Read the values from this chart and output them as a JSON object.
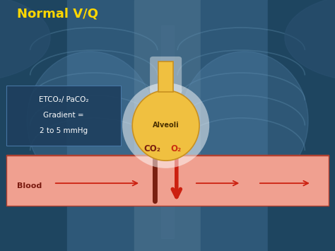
{
  "title": "Normal V/Q",
  "title_color": "#FFD700",
  "title_fontsize": 13,
  "bg_color": "#4a7a96",
  "box_bg_color": "#1e3f5e",
  "box_text_line1": "ETCO₂/ PaCO₂",
  "box_text_line2": "Gradient =",
  "box_text_line3": "2 to 5 mmHg",
  "blood_bar_color": "#f0a090",
  "blood_bar_edge_color": "#b04030",
  "blood_label": "Blood",
  "blood_label_color": "#7a1a10",
  "alveoli_body_color": "#f0c040",
  "alveoli_neck_color": "#c89020",
  "alveoli_label": "Alveoli",
  "alveoli_label_color": "#4a3000",
  "co2_label": "CO₂",
  "o2_label": "O₂",
  "co2_label_color": "#7a2010",
  "o2_label_color": "#cc3010",
  "arrow_up_color": "#7a2010",
  "arrow_down_color": "#cc2010",
  "arrow_h_color": "#cc2010",
  "chest_bg_colors": [
    "#2a5570",
    "#3a6a88",
    "#507a98",
    "#3a6a88",
    "#2a5570"
  ],
  "rib_color": "#5a8aaa"
}
